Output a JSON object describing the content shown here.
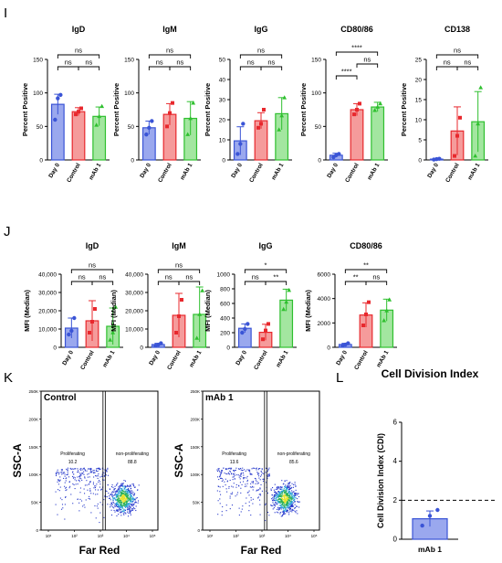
{
  "panels": {
    "I": "I",
    "J": "J",
    "K": "K",
    "L": "L"
  },
  "colors": {
    "day0": "#3a54d6",
    "control": "#e8282d",
    "mab1": "#2fc02f",
    "day0_fill": "#9aa8ee",
    "control_fill": "#f59b9b",
    "mab1_fill": "#a3e6a0"
  },
  "groups": [
    "Day 0",
    "Control",
    "mAb 1"
  ],
  "chart_data": [
    {
      "type": "bar",
      "panel": "I",
      "title": "IgD",
      "ylabel": "Percent Positive",
      "ylim": [
        0,
        150
      ],
      "yticks": [
        "0",
        "50",
        "100",
        "150"
      ],
      "categories": [
        "Day 0",
        "Control",
        "mAb 1"
      ],
      "values": [
        83,
        72,
        65
      ],
      "errors": [
        15,
        6,
        14
      ],
      "points": [
        [
          60,
          92,
          97
        ],
        [
          68,
          72,
          77
        ],
        [
          52,
          65,
          80
        ]
      ],
      "sig": [
        {
          "from": 0,
          "to": 1,
          "level": 0,
          "label": "ns"
        },
        {
          "from": 1,
          "to": 2,
          "level": 0,
          "label": "ns"
        },
        {
          "from": 0,
          "to": 2,
          "level": 1,
          "label": "ns"
        }
      ]
    },
    {
      "type": "bar",
      "panel": "I",
      "title": "IgM",
      "ylabel": "Percent Positive",
      "ylim": [
        0,
        150
      ],
      "yticks": [
        "0",
        "50",
        "100",
        "150"
      ],
      "categories": [
        "Day 0",
        "Control",
        "mAb 1"
      ],
      "values": [
        48,
        68,
        62
      ],
      "errors": [
        10,
        16,
        25
      ],
      "points": [
        [
          38,
          48,
          58
        ],
        [
          50,
          70,
          85
        ],
        [
          38,
          62,
          85
        ]
      ],
      "sig": [
        {
          "from": 0,
          "to": 1,
          "level": 0,
          "label": "ns"
        },
        {
          "from": 1,
          "to": 2,
          "level": 0,
          "label": "ns"
        },
        {
          "from": 0,
          "to": 2,
          "level": 1,
          "label": "ns"
        }
      ]
    },
    {
      "type": "bar",
      "panel": "I",
      "title": "IgG",
      "ylabel": "Percent Positive",
      "ylim": [
        0,
        50
      ],
      "yticks": [
        "0",
        "10",
        "20",
        "30",
        "40",
        "50"
      ],
      "categories": [
        "Day 0",
        "Control",
        "mAb 1"
      ],
      "values": [
        9.5,
        19.5,
        23
      ],
      "errors": [
        7,
        4,
        8
      ],
      "points": [
        [
          3,
          8,
          18
        ],
        [
          16,
          18,
          25
        ],
        [
          15,
          22,
          31
        ]
      ],
      "sig": [
        {
          "from": 0,
          "to": 1,
          "level": 0,
          "label": "ns"
        },
        {
          "from": 1,
          "to": 2,
          "level": 0,
          "label": "ns"
        },
        {
          "from": 0,
          "to": 2,
          "level": 1,
          "label": "ns"
        }
      ]
    },
    {
      "type": "bar",
      "panel": "I",
      "title": "CD80/86",
      "ylabel": "Percent Positive",
      "ylim": [
        0,
        150
      ],
      "yticks": [
        "0",
        "50",
        "100",
        "150"
      ],
      "categories": [
        "Day 0",
        "Control",
        "mAb 1"
      ],
      "values": [
        7,
        75,
        79
      ],
      "errors": [
        3,
        9,
        7
      ],
      "points": [
        [
          4,
          7,
          9
        ],
        [
          68,
          75,
          84
        ],
        [
          74,
          79,
          84
        ]
      ],
      "sig": [
        {
          "from": 0,
          "to": 1,
          "level": 0,
          "label": "****"
        },
        {
          "from": 1,
          "to": 2,
          "level": 1,
          "label": "ns"
        },
        {
          "from": 0,
          "to": 2,
          "level": 2,
          "label": "****"
        }
      ]
    },
    {
      "type": "bar",
      "panel": "I",
      "title": "CD138",
      "ylabel": "Percent Positive",
      "ylim": [
        0,
        25
      ],
      "yticks": [
        "0",
        "5",
        "10",
        "15",
        "20",
        "25"
      ],
      "categories": [
        "Day 0",
        "Control",
        "mAb 1"
      ],
      "values": [
        0.2,
        7.2,
        9.5
      ],
      "errors": [
        0.1,
        6,
        7.5
      ],
      "points": [
        [
          0.1,
          0.2,
          0.3
        ],
        [
          1,
          6,
          10.5
        ],
        [
          1,
          9,
          18
        ]
      ],
      "sig": [
        {
          "from": 0,
          "to": 1,
          "level": 0,
          "label": "ns"
        },
        {
          "from": 1,
          "to": 2,
          "level": 0,
          "label": "ns"
        },
        {
          "from": 0,
          "to": 2,
          "level": 1,
          "label": "ns"
        }
      ]
    },
    {
      "type": "bar",
      "panel": "J",
      "title": "IgD",
      "ylabel": "MFI (Median)",
      "ylim": [
        0,
        40000
      ],
      "yticks": [
        "0",
        "10,000",
        "20,000",
        "30,000",
        "40,000"
      ],
      "categories": [
        "Day 0",
        "Control",
        "mAb 1"
      ],
      "values": [
        10500,
        14500,
        11500
      ],
      "errors": [
        5500,
        11000,
        10000
      ],
      "points": [
        [
          7000,
          9000,
          16000
        ],
        [
          8000,
          14000,
          21000
        ],
        [
          4000,
          8000,
          22000
        ]
      ],
      "sig": [
        {
          "from": 0,
          "to": 1,
          "level": 0,
          "label": "ns"
        },
        {
          "from": 1,
          "to": 2,
          "level": 0,
          "label": "ns"
        },
        {
          "from": 0,
          "to": 2,
          "level": 1,
          "label": "ns"
        }
      ]
    },
    {
      "type": "bar",
      "panel": "J",
      "title": "IgM",
      "ylabel": "MFI (Median)",
      "ylim": [
        0,
        40000
      ],
      "yticks": [
        "0",
        "10,000",
        "20,000",
        "30,000",
        "40,000"
      ],
      "categories": [
        "Day 0",
        "Control",
        "mAb 1"
      ],
      "values": [
        1500,
        17500,
        18000
      ],
      "errors": [
        700,
        12000,
        15000
      ],
      "points": [
        [
          900,
          1400,
          2200
        ],
        [
          8000,
          17000,
          26000
        ],
        [
          5000,
          18000,
          31000
        ]
      ],
      "sig": [
        {
          "from": 0,
          "to": 1,
          "level": 0,
          "label": "ns"
        },
        {
          "from": 1,
          "to": 2,
          "level": 0,
          "label": "ns"
        },
        {
          "from": 0,
          "to": 2,
          "level": 1,
          "label": "ns"
        }
      ]
    },
    {
      "type": "bar",
      "panel": "J",
      "title": "IgG",
      "ylabel": "MFI (Median)",
      "ylim": [
        0,
        1000
      ],
      "yticks": [
        "0",
        "200",
        "400",
        "600",
        "800",
        "1000"
      ],
      "categories": [
        "Day 0",
        "Control",
        "mAb 1"
      ],
      "values": [
        260,
        205,
        645
      ],
      "errors": [
        60,
        110,
        150
      ],
      "points": [
        [
          200,
          250,
          320
        ],
        [
          110,
          230,
          320
        ],
        [
          520,
          620,
          780
        ]
      ],
      "sig": [
        {
          "from": 0,
          "to": 1,
          "level": 0,
          "label": "ns"
        },
        {
          "from": 1,
          "to": 2,
          "level": 0,
          "label": "**"
        },
        {
          "from": 0,
          "to": 2,
          "level": 1,
          "label": "*"
        }
      ]
    },
    {
      "type": "bar",
      "panel": "J",
      "title": "CD80/86",
      "ylabel": "MFI (Median)",
      "ylim": [
        0,
        6000
      ],
      "yticks": [
        "0",
        "2000",
        "4000",
        "6000"
      ],
      "categories": [
        "Day 0",
        "Control",
        "mAb 1"
      ],
      "values": [
        230,
        2650,
        3050
      ],
      "errors": [
        100,
        1000,
        900
      ],
      "points": [
        [
          140,
          220,
          330
        ],
        [
          1800,
          2700,
          3700
        ],
        [
          2200,
          3000,
          3900
        ]
      ],
      "sig": [
        {
          "from": 0,
          "to": 1,
          "level": 0,
          "label": "**"
        },
        {
          "from": 1,
          "to": 2,
          "level": 0,
          "label": "ns"
        },
        {
          "from": 0,
          "to": 2,
          "level": 1,
          "label": "**"
        }
      ]
    },
    {
      "type": "scatter",
      "panel": "K",
      "title": "Control",
      "xlabel": "Far Red",
      "ylabel": "SSC-A",
      "yticks": [
        "0",
        "50K",
        "100K",
        "150K",
        "200K",
        "250K"
      ],
      "xticks": [
        "10¹",
        "10²",
        "10³",
        "10⁴",
        "10⁵"
      ],
      "gates": [
        {
          "name": "Proliferating",
          "value": "10.2"
        },
        {
          "name": "non-proliferating",
          "value": "88.8"
        }
      ]
    },
    {
      "type": "scatter",
      "panel": "K",
      "title": "mAb 1",
      "xlabel": "Far Red",
      "ylabel": "SSC-A",
      "yticks": [
        "0",
        "50K",
        "100K",
        "150K",
        "200K",
        "250K"
      ],
      "xticks": [
        "10¹",
        "10²",
        "10³",
        "10⁴",
        "10⁵"
      ],
      "gates": [
        {
          "name": "Proliferating",
          "value": "13.6"
        },
        {
          "name": "non-proliferating",
          "value": "85.6"
        }
      ]
    },
    {
      "type": "bar",
      "panel": "L",
      "title": "Cell Division Index",
      "ylabel": "Cell Division Index (CDI)",
      "ylim": [
        0,
        6
      ],
      "yticks": [
        "0",
        "2",
        "4",
        "6"
      ],
      "categories": [
        "mAb 1"
      ],
      "values": [
        1.05
      ],
      "errors": [
        0.4
      ],
      "points": [
        [
          0.7,
          1.2,
          1.5
        ]
      ],
      "reference_line": 2
    }
  ]
}
